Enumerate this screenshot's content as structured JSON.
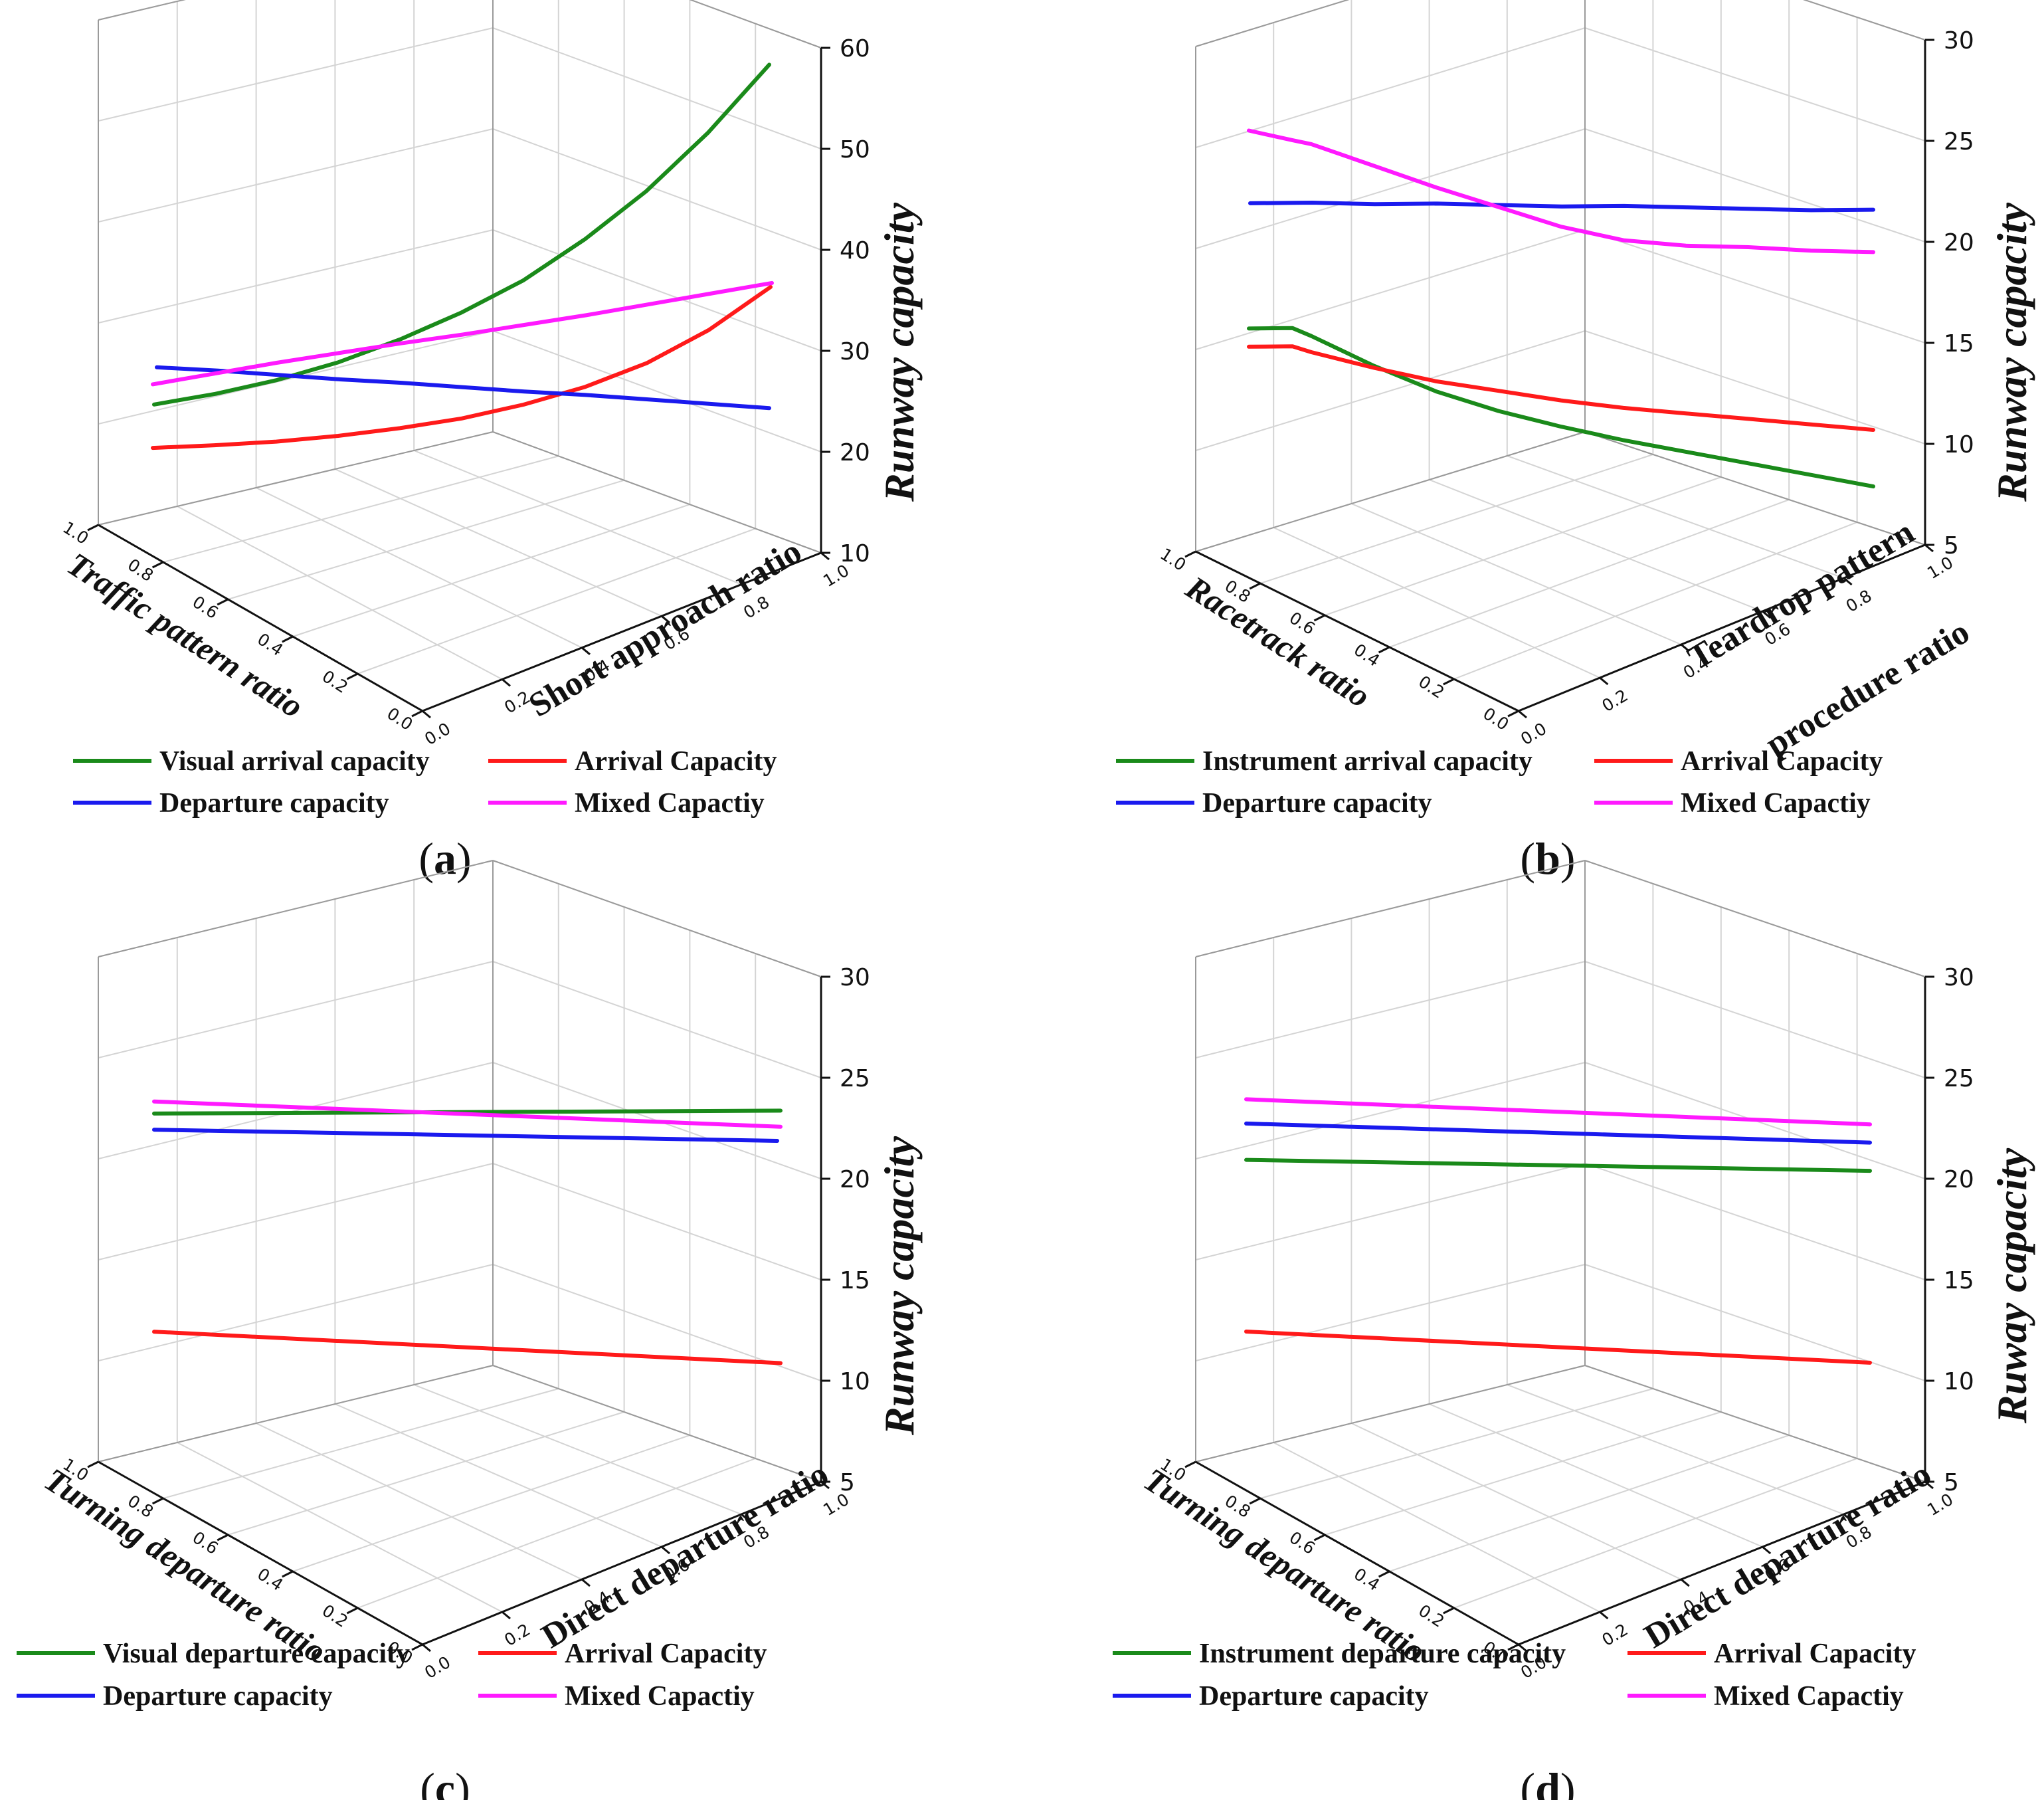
{
  "chart_data": [
    {
      "panel": "a",
      "type": "line",
      "view": "3d",
      "zlabel": "Runway capacity",
      "xlabel": "Traffic pattern ratio",
      "ylabel": "Short approach ratio",
      "zlim": [
        10,
        60
      ],
      "zticks": [
        "10",
        "20",
        "30",
        "40",
        "50",
        "60"
      ],
      "xticks": [
        "1.0",
        "0.8",
        "0.6",
        "0.4",
        "0.2",
        "0.0"
      ],
      "yticks": [
        "0.0",
        "0.2",
        "0.4",
        "0.6",
        "0.8",
        "1.0"
      ],
      "t": [
        0,
        0.1,
        0.2,
        0.3,
        0.4,
        0.5,
        0.6,
        0.7,
        0.8,
        0.9,
        1.0
      ],
      "series": [
        {
          "name": "Visual arrival capacity",
          "color": "#1a8a1a",
          "values": [
            19.5,
            20.8,
            22.4,
            24.4,
            26.9,
            29.8,
            33.2,
            37.5,
            42.5,
            48.5,
            55.5
          ]
        },
        {
          "name": "Arrival Capacity",
          "color": "#ff1a1a",
          "values": [
            15.2,
            15.7,
            16.3,
            17.1,
            18.1,
            19.3,
            20.9,
            22.9,
            25.5,
            29.0,
            33.5
          ]
        },
        {
          "name": "Departure capacity",
          "color": "#1a1aee",
          "values": [
            23.2,
            23.1,
            22.9,
            22.7,
            22.6,
            22.4,
            22.2,
            22.1,
            21.9,
            21.7,
            21.5
          ]
        },
        {
          "name": "Mixed Capactiy",
          "color": "#ff1aff",
          "values": [
            21.5,
            22.8,
            24.1,
            25.3,
            26.5,
            27.6,
            28.8,
            30.0,
            31.3,
            32.6,
            33.9
          ]
        }
      ],
      "legend": [
        "Visual arrival capacity",
        "Arrival Capacity",
        "Departure capacity",
        "Mixed Capactiy"
      ],
      "label": "(a)"
    },
    {
      "panel": "b",
      "type": "line",
      "view": "3d",
      "zlabel": "Runway capacity",
      "xlabel": "Racetrack ratio",
      "ylabel_lines": [
        "Teardrop pattern",
        "procedure ratio"
      ],
      "zlim": [
        5,
        30
      ],
      "zticks": [
        "5",
        "10",
        "15",
        "20",
        "25",
        "30"
      ],
      "xticks": [
        "1.0",
        "0.8",
        "0.6",
        "0.4",
        "0.2",
        "0.0"
      ],
      "yticks": [
        "0.0",
        "0.2",
        "0.4",
        "0.6",
        "0.8",
        "1.0"
      ],
      "t": [
        0,
        0.07,
        0.1,
        0.2,
        0.3,
        0.4,
        0.5,
        0.6,
        0.7,
        0.8,
        0.9,
        1.0
      ],
      "series": [
        {
          "name": "Instrument arrival capacity",
          "color": "#1a8a1a",
          "values": [
            14.7,
            14.7,
            14.3,
            12.8,
            11.5,
            10.5,
            9.7,
            9.0,
            8.4,
            7.8,
            7.2,
            6.6
          ]
        },
        {
          "name": "Arrival Capacity",
          "color": "#ff1a1a",
          "values": [
            13.8,
            13.8,
            13.5,
            12.7,
            12.0,
            11.5,
            11.0,
            10.6,
            10.3,
            10.0,
            9.7,
            9.4
          ]
        },
        {
          "name": "Departure capacity",
          "color": "#1a1aee",
          "values": [
            20.9,
            20.9,
            20.9,
            20.8,
            20.8,
            20.7,
            20.6,
            20.6,
            20.5,
            20.4,
            20.3,
            20.3
          ]
        },
        {
          "name": "Mixed Capactiy",
          "color": "#ff1aff",
          "values": [
            24.5,
            24.0,
            23.8,
            22.7,
            21.6,
            20.6,
            19.6,
            18.9,
            18.6,
            18.5,
            18.3,
            18.2
          ]
        }
      ],
      "legend": [
        "Instrument arrival capacity",
        "Arrival Capacity",
        "Departure capacity",
        "Mixed Capactiy"
      ],
      "label": "(b)"
    },
    {
      "panel": "c",
      "type": "line",
      "view": "3d",
      "zlabel": "Runway capacity",
      "xlabel": "Turning departure ratio",
      "ylabel": "Direct departure ratio",
      "zlim": [
        5,
        30
      ],
      "zticks": [
        "5",
        "10",
        "15",
        "20",
        "25",
        "30"
      ],
      "xticks": [
        "1.0",
        "0.8",
        "0.6",
        "0.4",
        "0.2",
        "0.0"
      ],
      "yticks": [
        "0.0",
        "0.2",
        "0.4",
        "0.6",
        "0.8",
        "1.0"
      ],
      "t": [
        0,
        1
      ],
      "series": [
        {
          "name": "Visual departure capacity",
          "color": "#1a8a1a",
          "values": [
            21.0,
            22.0
          ]
        },
        {
          "name": "Arrival Capacity",
          "color": "#ff1a1a",
          "values": [
            10.2,
            9.5
          ]
        },
        {
          "name": "Departure capacity",
          "color": "#1a1aee",
          "values": [
            20.2,
            20.5
          ]
        },
        {
          "name": "Mixed Capactiy",
          "color": "#ff1aff",
          "values": [
            21.6,
            21.2
          ]
        }
      ],
      "legend": [
        "Visual departure capacity",
        "Arrival Capacity",
        "Departure capacity",
        "Mixed Capactiy"
      ],
      "label": "(c)"
    },
    {
      "panel": "d",
      "type": "line",
      "view": "3d",
      "zlabel": "Ruway capacity",
      "xlabel": "Turning departure ratio",
      "ylabel": "Direct departure ratio",
      "zlim": [
        5,
        30
      ],
      "zticks": [
        "5",
        "10",
        "15",
        "20",
        "25",
        "30"
      ],
      "xticks": [
        "1.0",
        "0.8",
        "0.6",
        "0.4",
        "0.2",
        "0.0"
      ],
      "yticks": [
        "0.0",
        "0.2",
        "0.4",
        "0.6",
        "0.8",
        "1.0"
      ],
      "t": [
        0,
        1
      ],
      "series": [
        {
          "name": "Instrument departure capacity",
          "color": "#1a8a1a",
          "values": [
            18.7,
            19.0
          ]
        },
        {
          "name": "Arrival Capacity",
          "color": "#ff1a1a",
          "values": [
            10.2,
            9.5
          ]
        },
        {
          "name": "Departure capacity",
          "color": "#1a1aee",
          "values": [
            20.5,
            20.4
          ]
        },
        {
          "name": "Mixed Capactiy",
          "color": "#ff1aff",
          "values": [
            21.7,
            21.3
          ]
        }
      ],
      "legend": [
        "Instrument departure capacity",
        "Arrival Capacity",
        "Departure capacity",
        "Mixed Capactiy"
      ],
      "label": "(d)"
    }
  ]
}
